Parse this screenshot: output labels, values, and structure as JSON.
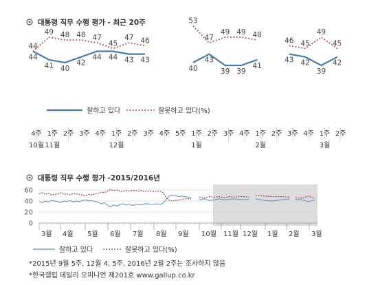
{
  "chart_data": [
    {
      "type": "line",
      "title": "대통령 직무 수행 평가 - 최근 20주",
      "segments": [
        {
          "approve": [
            44,
            41,
            40,
            42,
            44,
            44,
            43,
            43
          ],
          "disapprove": [
            44,
            49,
            48,
            48,
            47,
            45,
            47,
            46
          ]
        },
        {
          "approve": [
            40,
            43,
            39,
            39,
            41
          ],
          "disapprove": [
            53,
            47,
            49,
            49,
            48
          ]
        },
        {
          "approve": [
            43,
            42,
            39,
            42
          ],
          "disapprove": [
            46,
            45,
            49,
            45
          ]
        }
      ],
      "legend": [
        "잘하고 있다",
        "잘못하고 있다(%)"
      ],
      "week_labels": [
        "4주",
        "1주",
        "2주",
        "3주",
        "4주",
        "1주",
        "2주",
        "3주",
        "4주",
        "5주",
        "1주",
        "2주",
        "3주",
        "4주",
        "1주",
        "2주",
        "3주",
        "4주",
        "1주",
        "2주"
      ],
      "month_labels": [
        {
          "label": "10월",
          "at": 0
        },
        {
          "label": "11월",
          "at": 1
        },
        {
          "label": "12월",
          "at": 5
        },
        {
          "label": "1월",
          "at": 10
        },
        {
          "label": "2월",
          "at": 14
        },
        {
          "label": "3월",
          "at": 18
        }
      ],
      "colors": {
        "approve": "#4a7aaa",
        "disapprove": "#b24848"
      }
    },
    {
      "type": "line",
      "title": "대통령 직무 수행 평가 -2015/2016년",
      "y_ticks": [
        "60",
        "40",
        "20",
        "0"
      ],
      "ylim": [
        0,
        60
      ],
      "month_labels": [
        "3월",
        "4월",
        "5월",
        "6월",
        "7월",
        "8월",
        "9월",
        "10월",
        "11월",
        "12월",
        "1월",
        "2월",
        "3월"
      ],
      "legend": [
        "잘하고 있다",
        "잘못하고 있다(%)"
      ],
      "segments": [
        {
          "approve": [
            39,
            37,
            40,
            38,
            41,
            40,
            39,
            37,
            40,
            39,
            41,
            38,
            40,
            39,
            41,
            42,
            40,
            41,
            39,
            38,
            35,
            37,
            33,
            29,
            33,
            31,
            34,
            35,
            33,
            34,
            32,
            33,
            34,
            33,
            35,
            35,
            34,
            34,
            35,
            34,
            36,
            43,
            49,
            51,
            50,
            48,
            49,
            48,
            47,
            46
          ],
          "disapprove": [
            53,
            55,
            52,
            54,
            51,
            52,
            53,
            55,
            52,
            53,
            51,
            54,
            53,
            52,
            51,
            50,
            52,
            51,
            53,
            54,
            56,
            55,
            58,
            61,
            59,
            60,
            58,
            57,
            59,
            58,
            59,
            59,
            58,
            59,
            57,
            58,
            58,
            57,
            58,
            58,
            55,
            46,
            41,
            40,
            41,
            42,
            43,
            44,
            44,
            44
          ]
        },
        {
          "approve": [
            42,
            44,
            41,
            42,
            44,
            42,
            43,
            44,
            43,
            42,
            43
          ],
          "disapprove": [
            47,
            45,
            48,
            47,
            48,
            46,
            48,
            47,
            48,
            48,
            47
          ]
        },
        {
          "approve": [
            44,
            41,
            40,
            42,
            44
          ],
          "disapprove": [
            50,
            49,
            48,
            48,
            47
          ]
        },
        {
          "approve": [
            43,
            42,
            39,
            42
          ],
          "disapprove": [
            46,
            45,
            49,
            45
          ]
        }
      ],
      "colors": {
        "approve": "#6f9ec8",
        "disapprove": "#b24848"
      }
    }
  ],
  "footnotes": [
    "*2015년 9월 5주, 12월 4, 5주, 2016년 2월 2주는 조사하지 않음",
    "*한국갤럽 데일리 오피니언 제201호 www.gallup.co.kr"
  ],
  "title_icon": "target-circle-icon"
}
